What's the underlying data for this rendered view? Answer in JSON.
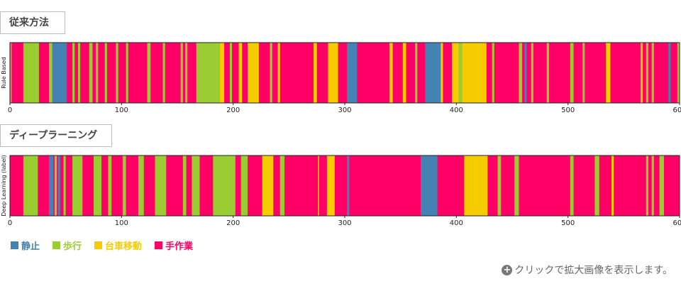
{
  "sections": [
    {
      "label": "従来方法"
    },
    {
      "label": "ディープラーニング"
    }
  ],
  "legend": [
    {
      "label": "静止",
      "color": "#4582b4"
    },
    {
      "label": "歩行",
      "color": "#9acd32"
    },
    {
      "label": "台車移動",
      "color": "#f5cc00"
    },
    {
      "label": "手作業",
      "color": "#ff0066"
    }
  ],
  "zoom_note": "クリックで拡大画像を表示します。",
  "zoom_icon": "plus-circle-icon",
  "chart_data": [
    {
      "type": "bar",
      "title": "",
      "ylabel": "Rule Based",
      "xlim": [
        0,
        600
      ],
      "x_ticks": [
        0,
        100,
        200,
        300,
        400,
        500,
        600
      ],
      "background_category": "手作業",
      "categories": [
        "静止",
        "歩行",
        "台車移動",
        "手作業"
      ],
      "segments": [
        {
          "start": 0.5,
          "end": 1.5,
          "category": "歩行"
        },
        {
          "start": 12,
          "end": 26,
          "category": "歩行"
        },
        {
          "start": 35,
          "end": 38,
          "category": "歩行"
        },
        {
          "start": 38,
          "end": 51,
          "category": "静止"
        },
        {
          "start": 56,
          "end": 58,
          "category": "歩行"
        },
        {
          "start": 61,
          "end": 63,
          "category": "歩行"
        },
        {
          "start": 71,
          "end": 74,
          "category": "歩行"
        },
        {
          "start": 77,
          "end": 79,
          "category": "歩行"
        },
        {
          "start": 85,
          "end": 87,
          "category": "歩行"
        },
        {
          "start": 95,
          "end": 97,
          "category": "歩行"
        },
        {
          "start": 104,
          "end": 106,
          "category": "歩行"
        },
        {
          "start": 123,
          "end": 126,
          "category": "歩行"
        },
        {
          "start": 137,
          "end": 139,
          "category": "歩行"
        },
        {
          "start": 153,
          "end": 155,
          "category": "歩行"
        },
        {
          "start": 157,
          "end": 159,
          "category": "歩行"
        },
        {
          "start": 167,
          "end": 188,
          "category": "歩行"
        },
        {
          "start": 188,
          "end": 192,
          "category": "台車移動"
        },
        {
          "start": 197,
          "end": 199,
          "category": "歩行"
        },
        {
          "start": 205,
          "end": 208,
          "category": "台車移動"
        },
        {
          "start": 213,
          "end": 223,
          "category": "台車移動"
        },
        {
          "start": 233,
          "end": 235,
          "category": "歩行"
        },
        {
          "start": 240,
          "end": 242,
          "category": "台車移動"
        },
        {
          "start": 272,
          "end": 275,
          "category": "台車移動"
        },
        {
          "start": 285,
          "end": 294,
          "category": "台車移動"
        },
        {
          "start": 302,
          "end": 311,
          "category": "静止"
        },
        {
          "start": 340,
          "end": 343,
          "category": "台車移動"
        },
        {
          "start": 352,
          "end": 355,
          "category": "台車移動"
        },
        {
          "start": 363,
          "end": 365,
          "category": "歩行"
        },
        {
          "start": 372,
          "end": 386,
          "category": "静止"
        },
        {
          "start": 386,
          "end": 388,
          "category": "台車移動"
        },
        {
          "start": 396,
          "end": 402,
          "category": "台車移動"
        },
        {
          "start": 402,
          "end": 405,
          "category": "歩行"
        },
        {
          "start": 405,
          "end": 427,
          "category": "台車移動"
        },
        {
          "start": 432,
          "end": 434,
          "category": "歩行"
        },
        {
          "start": 456,
          "end": 459,
          "category": "歩行"
        },
        {
          "start": 461,
          "end": 463,
          "category": "静止"
        },
        {
          "start": 467,
          "end": 469,
          "category": "歩行"
        },
        {
          "start": 481,
          "end": 483,
          "category": "歩行"
        },
        {
          "start": 502,
          "end": 505,
          "category": "歩行"
        },
        {
          "start": 513,
          "end": 515,
          "category": "歩行"
        },
        {
          "start": 534,
          "end": 538,
          "category": "台車移動"
        },
        {
          "start": 565,
          "end": 567,
          "category": "台車移動"
        },
        {
          "start": 570,
          "end": 572,
          "category": "歩行"
        },
        {
          "start": 575,
          "end": 577,
          "category": "歩行"
        },
        {
          "start": 590,
          "end": 592,
          "category": "静止"
        },
        {
          "start": 598,
          "end": 600,
          "category": "歩行"
        }
      ]
    },
    {
      "type": "bar",
      "title": "",
      "ylabel": "Deep Learning (label)",
      "xlim": [
        0,
        600
      ],
      "x_ticks": [
        0,
        100,
        200,
        300,
        400,
        500,
        600
      ],
      "background_category": "手作業",
      "categories": [
        "静止",
        "歩行",
        "台車移動",
        "手作業"
      ],
      "segments": [
        {
          "start": 12,
          "end": 25,
          "category": "歩行"
        },
        {
          "start": 35,
          "end": 39,
          "category": "静止"
        },
        {
          "start": 40,
          "end": 42,
          "category": "歩行"
        },
        {
          "start": 43,
          "end": 45,
          "category": "静止"
        },
        {
          "start": 48,
          "end": 50,
          "category": "歩行"
        },
        {
          "start": 56,
          "end": 65,
          "category": "歩行"
        },
        {
          "start": 75,
          "end": 82,
          "category": "歩行"
        },
        {
          "start": 88,
          "end": 91,
          "category": "歩行"
        },
        {
          "start": 101,
          "end": 104,
          "category": "歩行"
        },
        {
          "start": 115,
          "end": 120,
          "category": "歩行"
        },
        {
          "start": 130,
          "end": 140,
          "category": "歩行"
        },
        {
          "start": 155,
          "end": 158,
          "category": "歩行"
        },
        {
          "start": 163,
          "end": 170,
          "category": "歩行"
        },
        {
          "start": 182,
          "end": 202,
          "category": "歩行"
        },
        {
          "start": 207,
          "end": 213,
          "category": "歩行"
        },
        {
          "start": 226,
          "end": 236,
          "category": "台車移動"
        },
        {
          "start": 242,
          "end": 246,
          "category": "歩行"
        },
        {
          "start": 276,
          "end": 277,
          "category": "台車移動"
        },
        {
          "start": 284,
          "end": 291,
          "category": "台車移動"
        },
        {
          "start": 302,
          "end": 304,
          "category": "静止"
        },
        {
          "start": 368,
          "end": 383,
          "category": "静止"
        },
        {
          "start": 407,
          "end": 428,
          "category": "台車移動"
        },
        {
          "start": 437,
          "end": 440,
          "category": "歩行"
        },
        {
          "start": 452,
          "end": 456,
          "category": "歩行"
        },
        {
          "start": 502,
          "end": 505,
          "category": "歩行"
        },
        {
          "start": 524,
          "end": 528,
          "category": "歩行"
        },
        {
          "start": 539,
          "end": 541,
          "category": "台車移動"
        },
        {
          "start": 570,
          "end": 572,
          "category": "歩行"
        },
        {
          "start": 575,
          "end": 577,
          "category": "歩行"
        },
        {
          "start": 582,
          "end": 586,
          "category": "歩行"
        }
      ]
    }
  ]
}
